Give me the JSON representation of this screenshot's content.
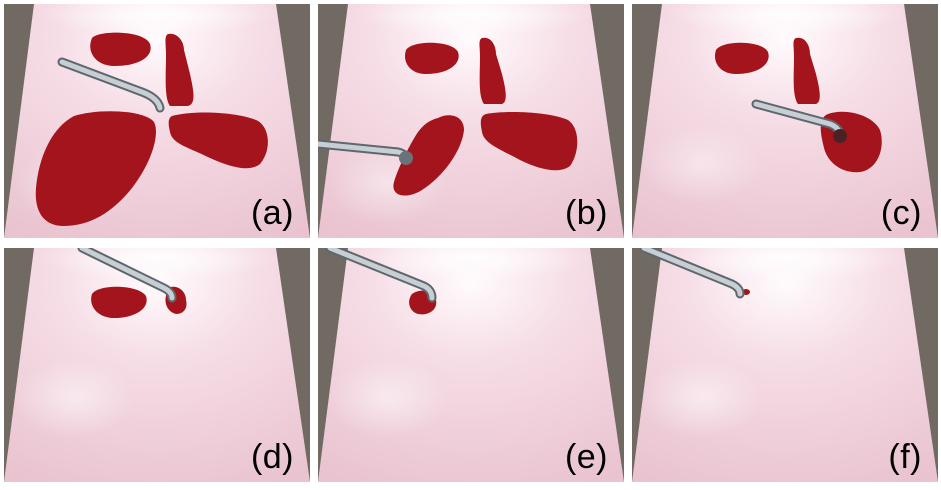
{
  "colors": {
    "background": "#716a63",
    "tray": "#f4d7e0",
    "blood": "#a3141c",
    "tool": "#9aa4ab"
  },
  "panels": [
    {
      "label": "(a)",
      "tool_icon": "suction-tool-icon"
    },
    {
      "label": "(b)",
      "tool_icon": "suction-tool-icon"
    },
    {
      "label": "(c)",
      "tool_icon": "suction-tool-icon"
    },
    {
      "label": "(d)",
      "tool_icon": "suction-tool-icon"
    },
    {
      "label": "(e)",
      "tool_icon": "suction-tool-icon"
    },
    {
      "label": "(f)",
      "tool_icon": "suction-tool-icon"
    }
  ]
}
